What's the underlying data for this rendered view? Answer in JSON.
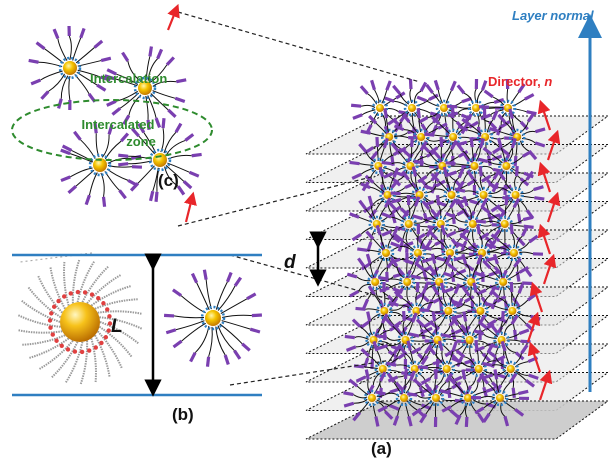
{
  "labels": {
    "layer_normal": "Layer normal",
    "director": "Director, ",
    "director_symbol": "n",
    "intercalation": "Intercalation",
    "intercalated_line1": "Intercalated",
    "intercalated_line2": "zone",
    "spacing": "d",
    "length": "L",
    "panel_a": "(a)",
    "panel_b": "(b)",
    "panel_c": "(c)"
  },
  "colors": {
    "mesogen": "#7a3fb0",
    "core": "#f2b400",
    "core_ring": "#2f7fc1",
    "director_arrow": "#e8262a",
    "layer_normal": "#2f7fc1",
    "label_green": "#2e8b2e",
    "ellipse_green": "#2e8b2e"
  }
}
